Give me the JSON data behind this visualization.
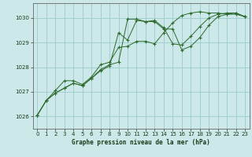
{
  "title": "Graphe pression niveau de la mer (hPa)",
  "bg_color": "#cce8e8",
  "grid_color": "#99cccc",
  "line_color": "#2d6a2d",
  "marker_color": "#2d6a2d",
  "xlim": [
    -0.5,
    23.5
  ],
  "ylim": [
    1025.5,
    1030.6
  ],
  "yticks": [
    1026,
    1027,
    1028,
    1029,
    1030
  ],
  "xticks": [
    0,
    1,
    2,
    3,
    4,
    5,
    6,
    7,
    8,
    9,
    10,
    11,
    12,
    13,
    14,
    15,
    16,
    17,
    18,
    19,
    20,
    21,
    22,
    23
  ],
  "series1": [
    1026.05,
    1026.65,
    1026.95,
    1027.15,
    1027.35,
    1027.25,
    1027.55,
    1027.85,
    1028.05,
    1029.4,
    1029.1,
    1029.9,
    1029.85,
    1029.85,
    1029.55,
    1029.55,
    1028.7,
    1028.85,
    1029.2,
    1029.7,
    1030.05,
    1030.15,
    1030.2,
    1030.05
  ],
  "series2": [
    1026.05,
    1026.65,
    1026.95,
    1027.15,
    1027.35,
    1027.25,
    1027.55,
    1027.9,
    1028.1,
    1028.2,
    1029.95,
    1029.95,
    1029.85,
    1029.9,
    1029.6,
    1028.95,
    1028.9,
    1029.25,
    1029.65,
    1030.0,
    1030.15,
    1030.2,
    1030.2,
    1030.05
  ],
  "series3": [
    1026.05,
    1026.65,
    1027.05,
    1027.45,
    1027.45,
    1027.3,
    1027.6,
    1028.1,
    1028.2,
    1028.8,
    1028.85,
    1029.05,
    1029.05,
    1028.95,
    1029.4,
    1029.8,
    1030.1,
    1030.2,
    1030.25,
    1030.2,
    1030.2,
    1030.15,
    1030.15,
    1030.05
  ],
  "xlabel_color": "#1a3a1a",
  "spine_color": "#666666",
  "tick_color": "#1a3a1a"
}
